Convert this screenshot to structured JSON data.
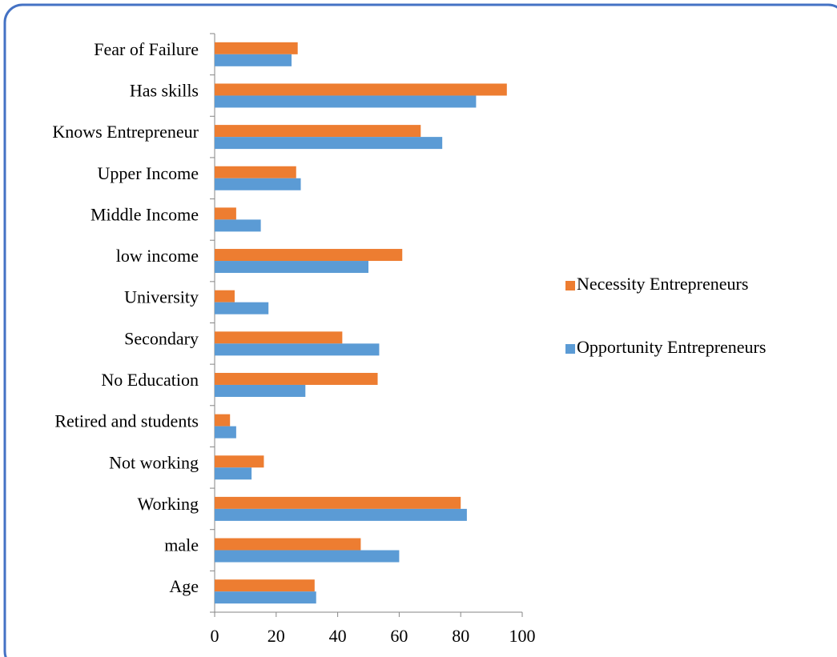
{
  "chart_data": {
    "type": "hbar",
    "categories": [
      "Fear of Failure",
      "Has skills",
      "Knows Entrepreneur",
      "Upper Income",
      "Middle Income",
      "low income",
      "University",
      "Secondary",
      "No Education",
      "Retired and students",
      "Not working",
      "Working",
      "male",
      "Age"
    ],
    "series": [
      {
        "name": "Necessity Entrepreneurs",
        "color": "#ed7d31",
        "values": [
          27,
          95,
          67,
          26.5,
          7,
          61,
          6.5,
          41.5,
          53,
          5,
          16,
          80,
          47.5,
          32.5
        ]
      },
      {
        "name": "Opportunity Entrepreneurs",
        "color": "#5b9bd5",
        "values": [
          25,
          85,
          74,
          28,
          15,
          50,
          17.5,
          53.5,
          29.5,
          7,
          12,
          82,
          60,
          33
        ]
      }
    ],
    "xlim": [
      0,
      100
    ],
    "xticks": [
      0,
      20,
      40,
      60,
      80,
      100
    ],
    "legend": "right"
  }
}
